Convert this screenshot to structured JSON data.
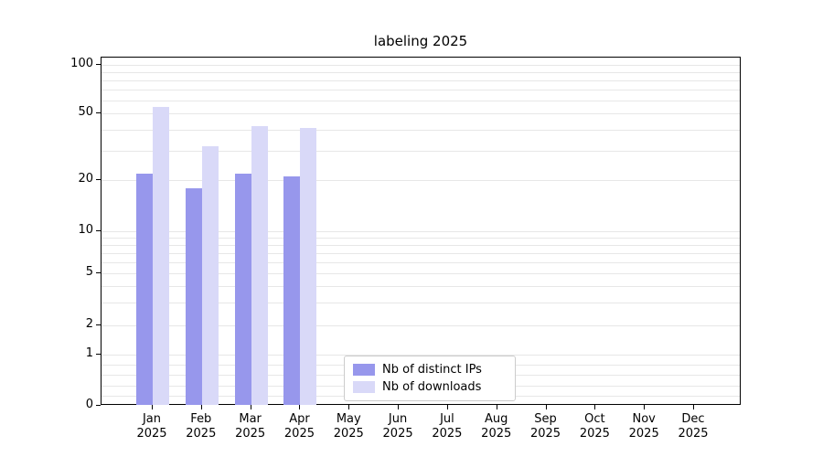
{
  "chart_data": {
    "type": "bar",
    "title": "labeling 2025",
    "year_label": "2025",
    "categories": [
      "Jan",
      "Feb",
      "Mar",
      "Apr",
      "May",
      "Jun",
      "Jul",
      "Aug",
      "Sep",
      "Oct",
      "Nov",
      "Dec"
    ],
    "series": [
      {
        "name": "Nb of distinct IPs",
        "color": "#9797ec",
        "values": [
          22,
          18,
          22,
          21,
          0,
          0,
          0,
          0,
          0,
          0,
          0,
          0
        ]
      },
      {
        "name": "Nb of downloads",
        "color": "#d9d9f8",
        "values": [
          55,
          32,
          42,
          41,
          0,
          0,
          0,
          0,
          0,
          0,
          0,
          0
        ]
      }
    ],
    "yticks": [
      100,
      50,
      20,
      10,
      5,
      2,
      1,
      0
    ],
    "yscale": "symlog",
    "ylim": [
      0,
      110
    ],
    "grid": true,
    "legend_position": "lower-center",
    "colors": {
      "grid": "#e7e7e7",
      "axis": "#000000",
      "background": "#ffffff",
      "legend_border": "#cccccc"
    }
  }
}
